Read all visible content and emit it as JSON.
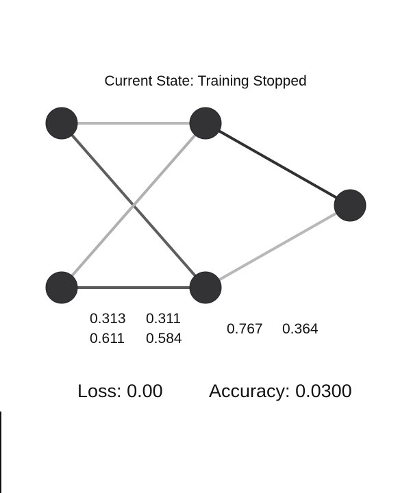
{
  "status": {
    "text": "Current State: Training Stopped"
  },
  "network": {
    "layers": [
      2,
      2,
      1
    ],
    "edges": [
      {
        "from": "input-1",
        "to": "hidden-1",
        "color": "#b8b8b8"
      },
      {
        "from": "input-1",
        "to": "hidden-2",
        "color": "#5e5e5e"
      },
      {
        "from": "input-2",
        "to": "hidden-1",
        "color": "#b0b0b0"
      },
      {
        "from": "input-2",
        "to": "hidden-2",
        "color": "#5a5a5a"
      },
      {
        "from": "hidden-1",
        "to": "output-1",
        "color": "#303030"
      },
      {
        "from": "hidden-2",
        "to": "output-1",
        "color": "#b8b8b8"
      }
    ],
    "node_color": "#333336",
    "node_stroke": "#252527"
  },
  "weights": {
    "layer1": [
      [
        "0.313",
        "0.311"
      ],
      [
        "0.611",
        "0.584"
      ]
    ],
    "layer2": [
      "0.767",
      "0.364"
    ]
  },
  "metrics": {
    "loss_label": "Loss:",
    "loss_value": "0.00",
    "accuracy_label": "Accuracy:",
    "accuracy_value": "0.0300"
  }
}
